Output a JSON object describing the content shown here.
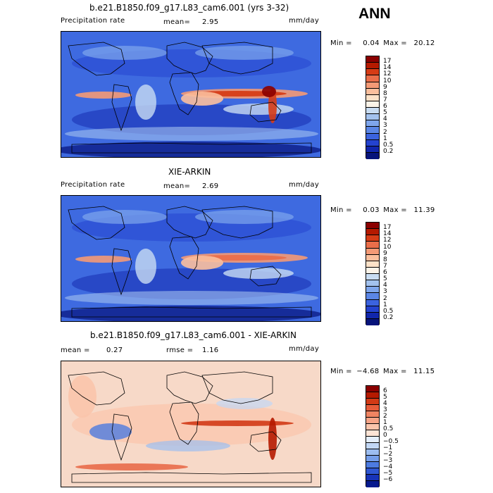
{
  "season": "ANN",
  "panels": [
    {
      "title": "b.e21.B1850.f09_g17.L83_cam6.001 (yrs 3-32)",
      "left_label": "Precipitation rate",
      "mid_label": "mean=",
      "mid_value": "2.95",
      "units": "mm/day",
      "min_text": "Min =",
      "min_value": "0.04",
      "max_text": "Max =",
      "max_value": "20.12",
      "colorbar_ticks": [
        "17",
        "14",
        "12",
        "10",
        "9",
        "8",
        "7",
        "6",
        "5",
        "4",
        "3",
        "2",
        "1",
        "0.5",
        "0.2"
      ],
      "colorbar_colors": [
        "#8b0000",
        "#b51a00",
        "#d63c16",
        "#ea6e4a",
        "#f49a76",
        "#fbbf9d",
        "#fde2c8",
        "#fbf3e8",
        "#c8dcf2",
        "#a3c2ee",
        "#7fa6ec",
        "#5b86e6",
        "#3b63df",
        "#2443cf",
        "#1126ac",
        "#06137a"
      ],
      "map_style": "model"
    },
    {
      "title": "XIE-ARKIN",
      "left_label": "Precipitation rate",
      "mid_label": "mean=",
      "mid_value": "2.69",
      "units": "mm/day",
      "min_text": "Min =",
      "min_value": "0.03",
      "max_text": "Max =",
      "max_value": "11.39",
      "colorbar_ticks": [
        "17",
        "14",
        "12",
        "10",
        "9",
        "8",
        "7",
        "6",
        "5",
        "4",
        "3",
        "2",
        "1",
        "0.5",
        "0.2"
      ],
      "colorbar_colors": [
        "#8b0000",
        "#b51a00",
        "#d63c16",
        "#ea6e4a",
        "#f49a76",
        "#fbbf9d",
        "#fde2c8",
        "#fbf3e8",
        "#c8dcf2",
        "#a3c2ee",
        "#7fa6ec",
        "#5b86e6",
        "#3b63df",
        "#2443cf",
        "#1126ac",
        "#06137a"
      ],
      "map_style": "obs"
    },
    {
      "title": "b.e21.B1850.f09_g17.L83_cam6.001 - XIE-ARKIN",
      "left_label": "mean =",
      "left_value": "0.27",
      "mid_label": "rmse =",
      "mid_value": "1.16",
      "units": "mm/day",
      "min_text": "Min =",
      "min_value": "−4.68",
      "max_text": "Max =",
      "max_value": "11.15",
      "colorbar_ticks": [
        "6",
        "5",
        "4",
        "3",
        "2",
        "1",
        "0.5",
        "0",
        "−0.5",
        "−1",
        "−2",
        "−3",
        "−4",
        "−5",
        "−6"
      ],
      "colorbar_colors": [
        "#8b0000",
        "#b51a00",
        "#d23a16",
        "#e65c3a",
        "#f08462",
        "#f6a487",
        "#fac4ab",
        "#fde4d5",
        "#e4eefb",
        "#c2d7f5",
        "#9cbdf0",
        "#759ee9",
        "#4d7be0",
        "#2f56d2",
        "#1733b8",
        "#061a8e"
      ],
      "map_style": "diff"
    }
  ]
}
